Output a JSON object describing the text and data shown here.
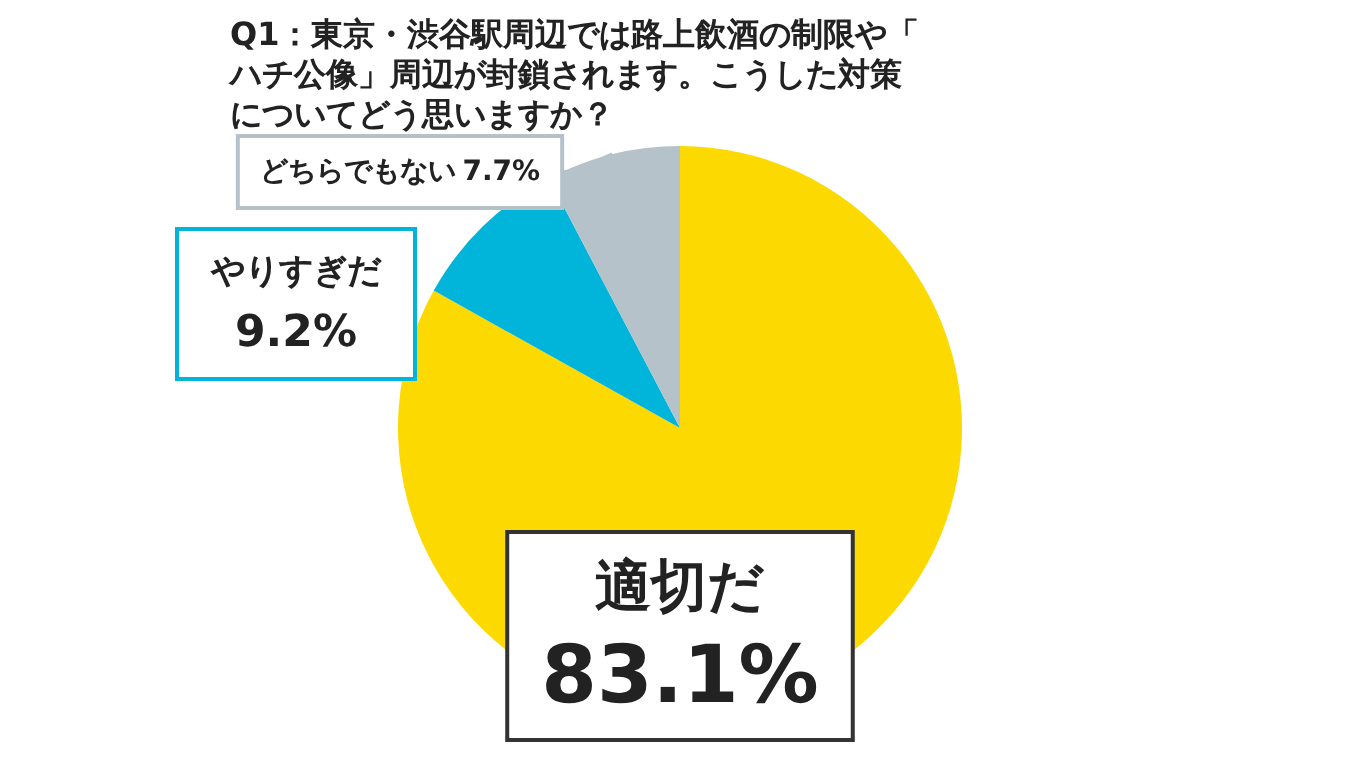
{
  "chart_data": {
    "type": "pie",
    "title": "Q1：東京・渋谷駅周辺では路上飲酒の制限や「ハチ公像」周辺が封鎖されます。こうした対策についてどう思いますか？",
    "categories": [
      "適切だ",
      "やりすぎだ",
      "どちらでもない"
    ],
    "values": [
      83.1,
      9.2,
      7.7
    ],
    "value_labels": [
      "83.1%",
      "9.2%",
      "7.7%"
    ],
    "colors": [
      "#fcd900",
      "#00b5d9",
      "#b5c2c9"
    ],
    "legend": false
  }
}
